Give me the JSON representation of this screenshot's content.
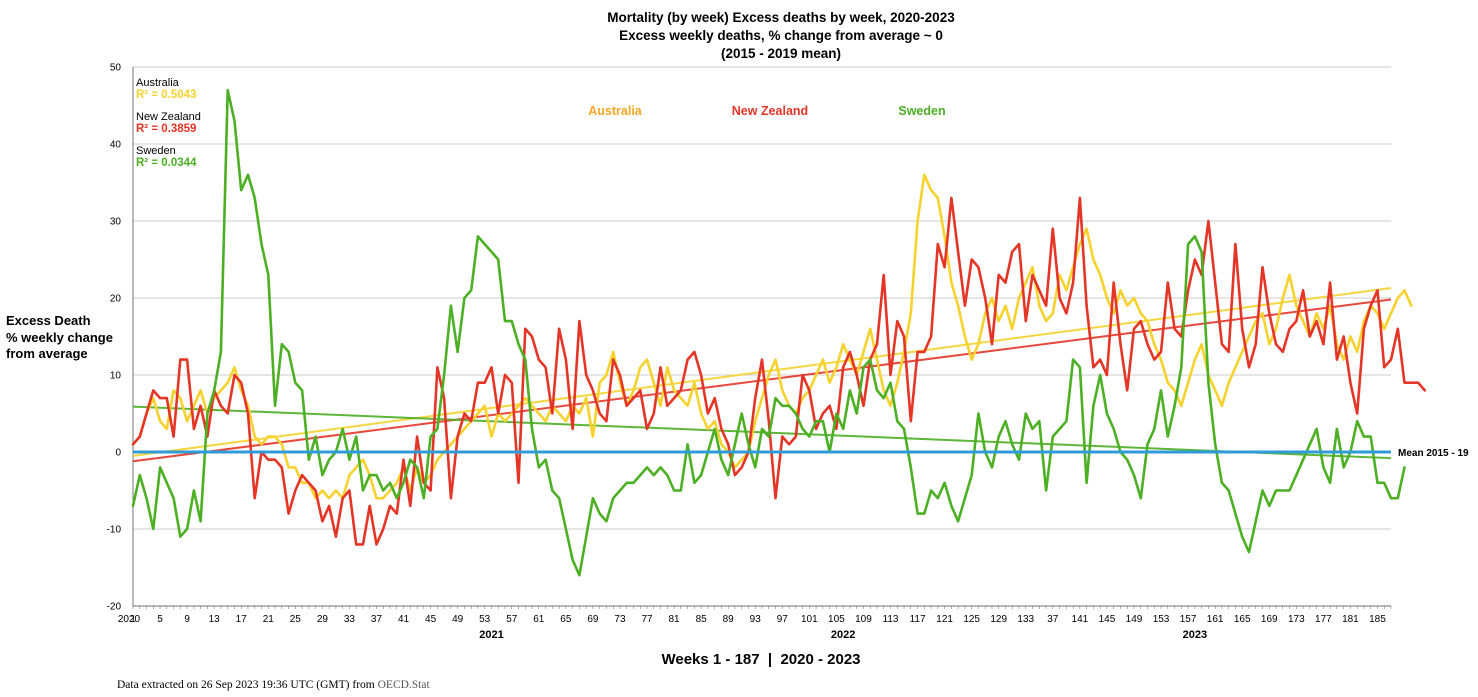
{
  "chart_data": {
    "type": "line",
    "title": [
      "Mortality (by week) Excess deaths by week, 2020-2023",
      "Excess weekly deaths, % change from average ~ 0",
      "(2015 - 2019 mean)"
    ],
    "ylabel": [
      "Excess Death",
      "% weekly change",
      "from average"
    ],
    "xlabel": "Weeks 1 - 187  |  2020 - 2023",
    "ylim": [
      -20,
      50
    ],
    "yticks": [
      "50",
      "40",
      "30",
      "20",
      "10",
      "0",
      "-10",
      "-20"
    ],
    "xlim": [
      1,
      187
    ],
    "xtick_labels": [
      "2020",
      "1",
      "5",
      "9",
      "13",
      "17",
      "21",
      "25",
      "29",
      "33",
      "37",
      "41",
      "45",
      "49",
      "53",
      "57",
      "61",
      "65",
      "69",
      "73",
      "77",
      "81",
      "85",
      "89",
      "93",
      "97",
      "101",
      "105",
      "109",
      "113",
      "117",
      "121",
      "125",
      "129",
      "133",
      "37",
      "141",
      "145",
      "149",
      "153",
      "157",
      "161",
      "165",
      "169",
      "173",
      "177",
      "181",
      "185"
    ],
    "year_labels": [
      {
        "label": "2021",
        "week": 54
      },
      {
        "label": "2022",
        "week": 106
      },
      {
        "label": "2023",
        "week": 158
      }
    ],
    "grid": true,
    "legend": [
      "Australia",
      "New Zealand",
      "Sweden"
    ],
    "r2_labels": [
      {
        "name": "Australia",
        "r2": "R² = 0.5043",
        "color": "#F5D22E"
      },
      {
        "name": "New Zealand",
        "r2": "R² = 0.3859",
        "color": "#E53527"
      },
      {
        "name": "Sweden",
        "r2": "R² = 0.0344",
        "color": "#4CAF24"
      }
    ],
    "legend_colors": [
      "#F6A623",
      "#E53527",
      "#4CAF24"
    ],
    "series": [
      {
        "name": "Australia",
        "color": "#F5D22E",
        "values": [
          1,
          2,
          5,
          7,
          4,
          3,
          8,
          7,
          4,
          6,
          8,
          5,
          7,
          8,
          9,
          11,
          8,
          6,
          2,
          1,
          2,
          2,
          1,
          -2,
          -2,
          -4,
          -4,
          -6,
          -5,
          -6,
          -5,
          -6,
          -3,
          -2,
          -1,
          -3,
          -6,
          -6,
          -5,
          -4,
          -2,
          -5,
          -2,
          -4,
          -3,
          -1,
          0,
          1,
          2,
          3,
          4,
          5,
          6,
          2,
          5,
          4,
          5,
          6,
          7,
          6,
          5,
          4,
          6,
          5,
          4,
          6,
          5,
          7,
          2,
          9,
          10,
          13,
          9,
          6,
          8,
          11,
          12,
          9,
          6,
          11,
          8,
          7,
          6,
          9,
          5,
          3,
          4,
          1,
          0,
          -2,
          -1,
          0,
          4,
          7,
          10,
          12,
          8,
          6,
          5,
          7,
          8,
          10,
          12,
          9,
          11,
          14,
          12,
          10,
          13,
          16,
          12,
          8,
          6,
          9,
          13,
          18,
          30,
          36,
          34,
          33,
          28,
          22,
          19,
          15,
          12,
          14,
          18,
          20,
          17,
          19,
          16,
          20,
          22,
          24,
          19,
          17,
          18,
          23,
          21,
          24,
          27,
          29,
          25,
          23,
          20,
          18,
          21,
          19,
          20,
          18,
          17,
          14,
          12,
          9,
          8,
          6,
          9,
          12,
          14,
          10,
          8,
          6,
          9,
          11,
          13,
          15,
          17,
          18,
          14,
          16,
          20,
          23,
          19,
          17,
          15,
          18,
          16,
          19,
          14,
          12,
          15,
          13,
          17,
          19,
          18,
          16,
          18,
          20,
          21,
          19
        ]
      },
      {
        "name": "New Zealand",
        "color": "#E53527",
        "values": [
          1,
          2,
          5,
          8,
          7,
          7,
          2,
          12,
          12,
          3,
          6,
          2,
          8,
          6,
          5,
          10,
          9,
          5,
          -6,
          0,
          -1,
          -1,
          -2,
          -8,
          -5,
          -3,
          -4,
          -5,
          -9,
          -7,
          -11,
          -6,
          -5,
          -12,
          -12,
          -7,
          -12,
          -10,
          -7,
          -8,
          -1,
          -7,
          2,
          -4,
          -5,
          11,
          7,
          -6,
          2,
          5,
          4,
          9,
          9,
          11,
          5,
          10,
          9,
          -4,
          16,
          15,
          12,
          11,
          5,
          16,
          12,
          3,
          17,
          10,
          8,
          5,
          4,
          12,
          10,
          6,
          7,
          8,
          3,
          5,
          11,
          6,
          7,
          8,
          12,
          13,
          10,
          5,
          7,
          3,
          1,
          -3,
          -2,
          0,
          7,
          12,
          4,
          -6,
          2,
          1,
          2,
          10,
          8,
          3,
          5,
          6,
          3,
          11,
          13,
          10,
          6,
          12,
          14,
          23,
          10,
          17,
          15,
          4,
          13,
          13,
          15,
          27,
          24,
          33,
          26,
          19,
          25,
          24,
          20,
          14,
          23,
          22,
          26,
          27,
          17,
          23,
          21,
          19,
          29,
          20,
          18,
          22,
          33,
          19,
          11,
          12,
          10,
          22,
          14,
          8,
          16,
          17,
          14,
          12,
          13,
          22,
          16,
          15,
          21,
          25,
          23,
          30,
          22,
          14,
          13,
          27,
          16,
          11,
          14,
          24,
          18,
          14,
          13,
          16,
          17,
          21,
          15,
          17,
          14,
          22,
          12,
          15,
          9,
          5,
          16,
          19,
          21,
          11,
          12,
          16,
          9,
          9,
          9,
          8
        ]
      },
      {
        "name": "Sweden",
        "color": "#4CAF24",
        "values": [
          -7,
          -3,
          -6,
          -10,
          -2,
          -4,
          -6,
          -11,
          -10,
          -5,
          -9,
          5,
          8,
          13,
          47,
          43,
          34,
          36,
          33,
          27,
          23,
          6,
          14,
          13,
          9,
          8,
          -1,
          2,
          -3,
          -1,
          0,
          3,
          -1,
          2,
          -5,
          -3,
          -3,
          -5,
          -4,
          -6,
          -4,
          -1,
          -2,
          -6,
          2,
          3,
          10,
          19,
          13,
          20,
          21,
          28,
          27,
          26,
          25,
          17,
          17,
          14,
          12,
          3,
          -2,
          -1,
          -5,
          -6,
          -10,
          -14,
          -16,
          -11,
          -6,
          -8,
          -9,
          -6,
          -5,
          -4,
          -4,
          -3,
          -2,
          -3,
          -2,
          -3,
          -5,
          -5,
          1,
          -4,
          -3,
          0,
          3,
          -1,
          -3,
          1,
          5,
          1,
          -2,
          3,
          2,
          7,
          6,
          6,
          5,
          3,
          2,
          4,
          4,
          0,
          5,
          3,
          8,
          5,
          11,
          12,
          8,
          7,
          9,
          4,
          3,
          -2,
          -8,
          -8,
          -5,
          -6,
          -4,
          -7,
          -9,
          -6,
          -3,
          5,
          0,
          -2,
          2,
          4,
          1,
          -1,
          5,
          3,
          4,
          -5,
          2,
          3,
          4,
          12,
          11,
          -4,
          6,
          10,
          5,
          3,
          0,
          -1,
          -3,
          -6,
          1,
          3,
          8,
          2,
          6,
          11,
          27,
          28,
          26,
          9,
          1,
          -4,
          -5,
          -8,
          -11,
          -13,
          -9,
          -5,
          -7,
          -5,
          -5,
          -5,
          -3,
          -1,
          1,
          3,
          -2,
          -4,
          3,
          -2,
          0,
          4,
          2,
          2,
          -4,
          -4,
          -6,
          -6,
          -2
        ]
      },
      {
        "name": "Mean 2015 - 19",
        "color": "#2F9BD9",
        "values": [
          0,
          0
        ]
      }
    ],
    "trendlines": [
      {
        "name": "Australia",
        "color": "#F5D22E",
        "from": [
          1,
          -0.5
        ],
        "to": [
          187,
          21.3
        ]
      },
      {
        "name": "New Zealand",
        "color": "#E53527",
        "from": [
          1,
          -1.2
        ],
        "to": [
          187,
          19.8
        ]
      },
      {
        "name": "Sweden",
        "color": "#4CAF24",
        "from": [
          1,
          5.9
        ],
        "to": [
          187,
          -0.8
        ]
      }
    ],
    "mean_label": "Mean 2015 - 19"
  },
  "footer": {
    "note": "Data extracted on 26 Sep 2023 19:36 UTC (GMT) from ",
    "source": "OECD.Stat"
  }
}
